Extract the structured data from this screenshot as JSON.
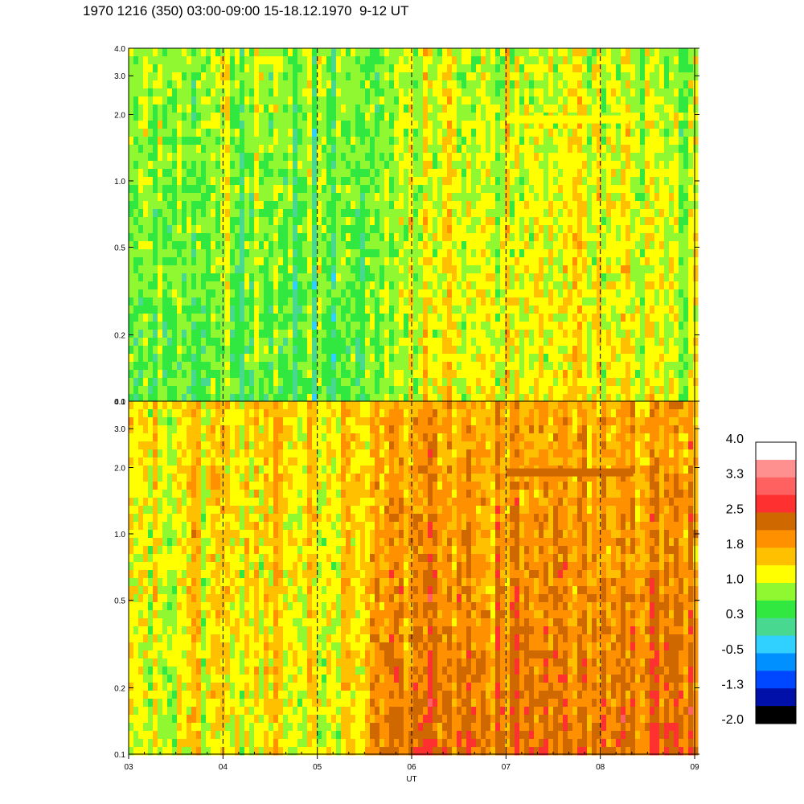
{
  "header": {
    "title": "1970 1216 (350) 03:00-09:00 15-18.12.1970  9-12 UT"
  },
  "colors": {
    "scale": [
      "#000000",
      "#0010a8",
      "#0048ff",
      "#0090ff",
      "#30d0ff",
      "#48d890",
      "#30e840",
      "#90f830",
      "#ffff00",
      "#ffc000",
      "#ff9000",
      "#d06800",
      "#ff3030",
      "#ff6060",
      "#ff9090",
      "#ffffff"
    ],
    "dashed_line": "#000000",
    "axis": "#000000"
  },
  "chart_data": {
    "type": "heatmap",
    "x_label": "UT",
    "x_ticks": [
      "03",
      "04",
      "05",
      "06",
      "07",
      "08",
      "09"
    ],
    "x_range": [
      3,
      9
    ],
    "y_scale": "log",
    "y_range": [
      0.1,
      4.0
    ],
    "y_ticks": [
      "0.1",
      "0.2",
      "0.5",
      "1.0",
      "2.0",
      "3.0",
      "4.0"
    ],
    "y_tick_values": [
      0.1,
      0.2,
      0.5,
      1.0,
      2.0,
      3.0,
      4.0
    ],
    "dashed_hour_lines": [
      4,
      5,
      6,
      7,
      8
    ],
    "colorbar": {
      "range": [
        -2.0,
        4.0
      ],
      "labels": [
        "4.0",
        "3.3",
        "2.5",
        "1.8",
        "1.0",
        "0.3",
        "-0.5",
        "-1.3",
        "-2.0"
      ]
    },
    "panels": [
      {
        "name": "upper",
        "segments": [
          {
            "x_start": 3.0,
            "x_end": 5.5,
            "low_freq_level": 0.5,
            "high_freq_level": 0.8
          },
          {
            "x_start": 5.5,
            "x_end": 6.0,
            "low_freq_level": 1.0,
            "high_freq_level": 0.9
          },
          {
            "x_start": 6.0,
            "x_end": 9.0,
            "low_freq_level": 1.2,
            "high_freq_level": 1.0
          }
        ],
        "band": {
          "x_start": 7.0,
          "x_end": 8.3,
          "y": 1.9,
          "level": 1.3
        }
      },
      {
        "name": "lower",
        "segments": [
          {
            "x_start": 3.0,
            "x_end": 5.5,
            "low_freq_level": 1.2,
            "high_freq_level": 1.4
          },
          {
            "x_start": 5.5,
            "x_end": 6.0,
            "low_freq_level": 2.1,
            "high_freq_level": 1.6
          },
          {
            "x_start": 6.0,
            "x_end": 9.0,
            "low_freq_level": 2.2,
            "high_freq_level": 1.7
          }
        ],
        "band": {
          "x_start": 7.0,
          "x_end": 8.35,
          "y": 1.9,
          "level": 2.4
        }
      }
    ]
  }
}
